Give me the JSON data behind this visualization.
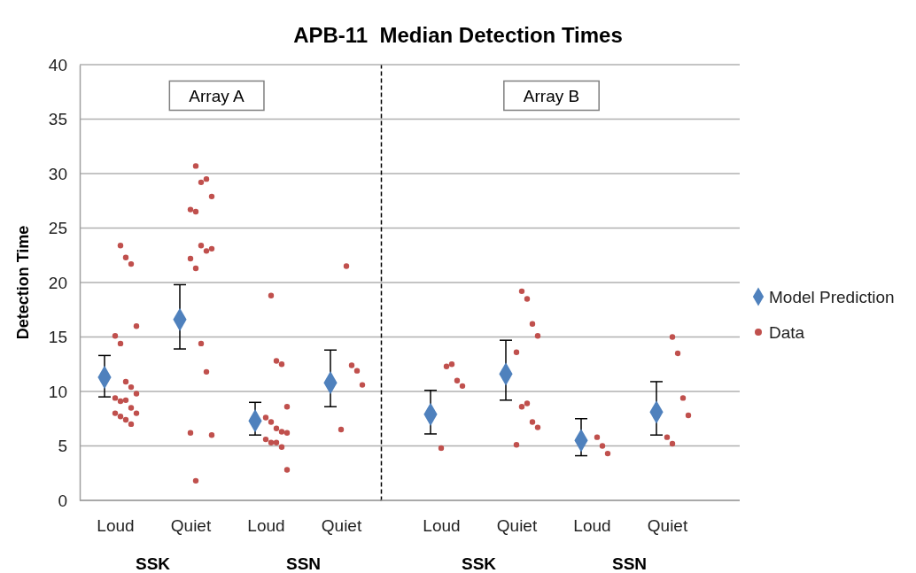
{
  "chart_data": [
    {
      "type": "scatter",
      "title": "APB-11  Median Detection Times",
      "subtitle": "Array A",
      "ylabel": "Detection Time",
      "categories": [
        "Loud",
        "Quiet",
        "Loud",
        "Quiet"
      ],
      "ylim": [
        0,
        40
      ],
      "yticks": [
        0,
        5,
        10,
        15,
        20,
        25,
        30,
        35,
        40
      ],
      "grid": "y",
      "legend": false,
      "annotations": [
        "SSK",
        "SSN"
      ],
      "series": [
        {
          "color": "#4f81bd",
          "marker": "diamond",
          "values": [
            11.3,
            16.6,
            7.3,
            10.8
          ],
          "errors": [
            [
              9.5,
              13.3
            ],
            [
              13.9,
              19.8
            ],
            [
              6.0,
              9.0
            ],
            [
              8.6,
              13.8
            ]
          ]
        },
        {
          "color": "#c0504d",
          "marker": "circle",
          "values": [
            23.4,
            30.7,
            18.8,
            21.5
          ]
        },
        {
          "color": "#c0504d",
          "marker": "circle",
          "values": [
            22.3,
            29.2,
            12.8,
            12.4
          ]
        },
        {
          "color": "#c0504d",
          "marker": "circle",
          "values": [
            21.7,
            29.5,
            12.5,
            11.9
          ]
        },
        {
          "color": "#c0504d",
          "marker": "circle",
          "values": [
            16.0,
            27.9,
            8.6,
            10.6
          ]
        },
        {
          "color": "#c0504d",
          "marker": "circle",
          "values": [
            15.1,
            26.7,
            7.6,
            6.5
          ]
        },
        {
          "color": "#c0504d",
          "marker": "circle",
          "values": [
            14.4,
            26.5,
            7.2,
            null
          ]
        },
        {
          "color": "#c0504d",
          "marker": "circle",
          "values": [
            10.9,
            23.4,
            6.6,
            null
          ]
        },
        {
          "color": "#c0504d",
          "marker": "circle",
          "values": [
            10.4,
            22.9,
            6.3,
            null
          ]
        },
        {
          "color": "#c0504d",
          "marker": "circle",
          "values": [
            9.8,
            23.1,
            6.2,
            null
          ]
        },
        {
          "color": "#c0504d",
          "marker": "circle",
          "values": [
            9.4,
            22.2,
            5.6,
            null
          ]
        },
        {
          "color": "#c0504d",
          "marker": "circle",
          "values": [
            9.1,
            21.3,
            5.3,
            null
          ]
        },
        {
          "color": "#c0504d",
          "marker": "circle",
          "values": [
            9.2,
            14.4,
            5.3,
            null
          ]
        },
        {
          "color": "#c0504d",
          "marker": "circle",
          "values": [
            8.5,
            11.8,
            4.9,
            null
          ]
        },
        {
          "color": "#c0504d",
          "marker": "circle",
          "values": [
            8.0,
            6.0,
            2.8,
            null
          ]
        },
        {
          "color": "#c0504d",
          "marker": "circle",
          "values": [
            8.0,
            6.2,
            null,
            null
          ]
        },
        {
          "color": "#c0504d",
          "marker": "circle",
          "values": [
            7.7,
            1.8,
            null,
            null
          ]
        },
        {
          "color": "#c0504d",
          "marker": "circle",
          "values": [
            7.4,
            null,
            null,
            null
          ]
        },
        {
          "color": "#c0504d",
          "marker": "circle",
          "values": [
            7.0,
            null,
            null,
            null
          ]
        }
      ]
    },
    {
      "type": "scatter",
      "subtitle": "Array B",
      "categories": [
        "Loud",
        "Quiet",
        "Loud",
        "Quiet"
      ],
      "ylim": [
        0,
        40
      ],
      "yticks": [
        0,
        5,
        10,
        15,
        20,
        25,
        30,
        35,
        40
      ],
      "tick_labels": "x",
      "grid": "y",
      "legend": "right",
      "annotations": [
        "SSK",
        "SSN"
      ],
      "series": [
        {
          "name": "Model Prediction",
          "color": "#4f81bd",
          "marker": "diamond",
          "values": [
            7.9,
            11.6,
            5.5,
            8.1
          ],
          "errors": [
            [
              6.1,
              10.1
            ],
            [
              9.2,
              14.7
            ],
            [
              4.1,
              7.5
            ],
            [
              6.0,
              10.9
            ]
          ]
        },
        {
          "name": "Data",
          "color": "#c0504d",
          "marker": "circle",
          "values": [
            12.3,
            19.2,
            5.8,
            15.0
          ]
        },
        {
          "color": "#c0504d",
          "marker": "circle",
          "values": [
            12.5,
            18.5,
            5.0,
            13.5
          ]
        },
        {
          "color": "#c0504d",
          "marker": "circle",
          "values": [
            11.0,
            16.2,
            4.3,
            9.4
          ]
        },
        {
          "color": "#c0504d",
          "marker": "circle",
          "values": [
            10.5,
            15.1,
            null,
            7.8
          ]
        },
        {
          "color": "#c0504d",
          "marker": "circle",
          "values": [
            4.8,
            13.6,
            null,
            5.8
          ]
        },
        {
          "color": "#c0504d",
          "marker": "circle",
          "values": [
            null,
            8.6,
            null,
            5.2
          ]
        },
        {
          "color": "#c0504d",
          "marker": "circle",
          "values": [
            null,
            8.9,
            null,
            null
          ]
        },
        {
          "color": "#c0504d",
          "marker": "circle",
          "values": [
            null,
            7.2,
            null,
            null
          ]
        },
        {
          "color": "#c0504d",
          "marker": "circle",
          "values": [
            null,
            6.7,
            null,
            null
          ]
        },
        {
          "color": "#c0504d",
          "marker": "circle",
          "values": [
            null,
            5.1,
            null,
            null
          ]
        }
      ]
    }
  ]
}
